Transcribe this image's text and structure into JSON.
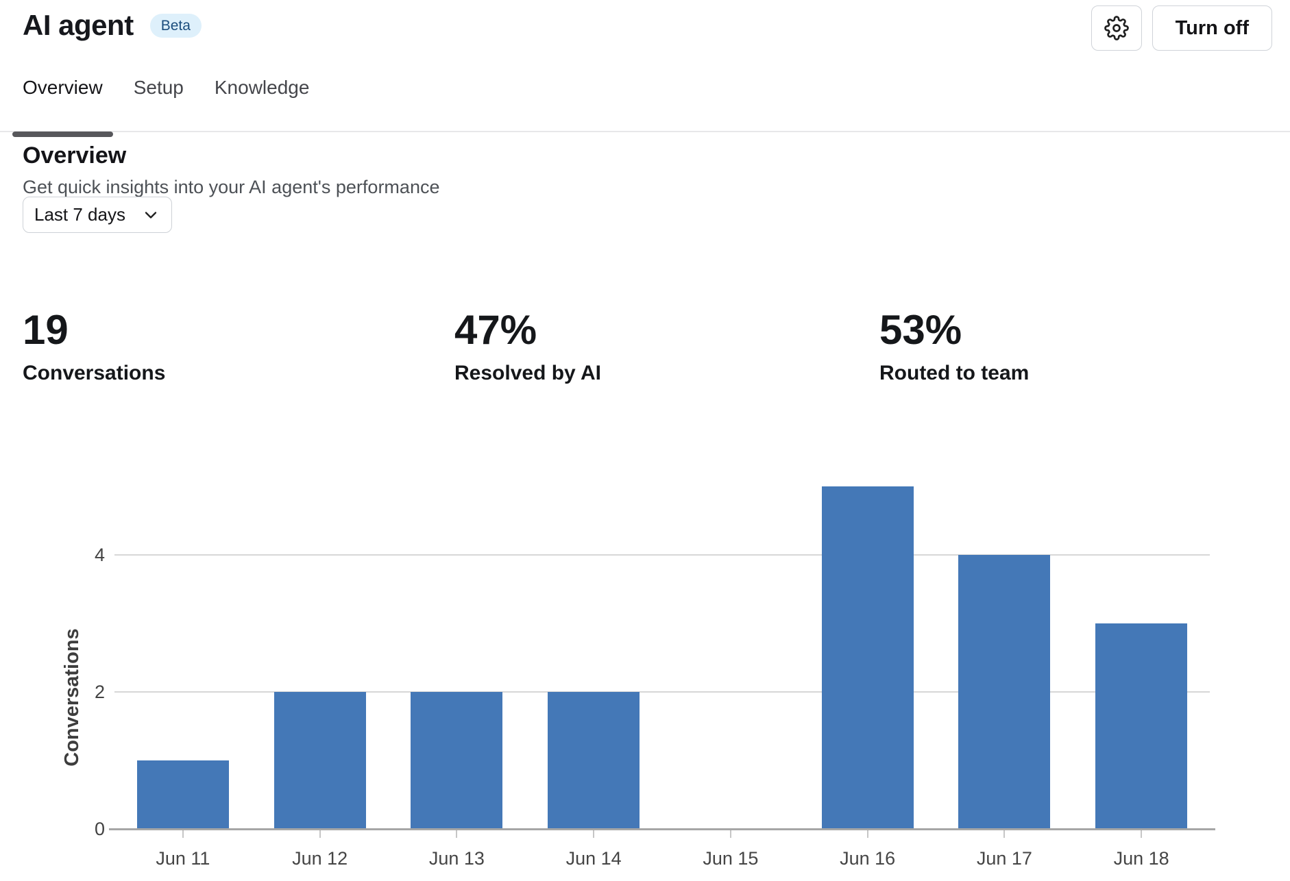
{
  "header": {
    "title": "AI agent",
    "badge": "Beta",
    "turn_off_label": "Turn off"
  },
  "tabs": [
    {
      "label": "Overview",
      "active": true
    },
    {
      "label": "Setup",
      "active": false
    },
    {
      "label": "Knowledge",
      "active": false
    }
  ],
  "section": {
    "heading": "Overview",
    "subheading": "Get quick insights into your AI agent's performance"
  },
  "filters": {
    "date_range_value": "Last 7 days"
  },
  "stats": [
    {
      "value": "19",
      "label": "Conversations"
    },
    {
      "value": "47%",
      "label": "Resolved by AI"
    },
    {
      "value": "53%",
      "label": "Routed to team"
    }
  ],
  "chart_data": {
    "type": "bar",
    "title": "",
    "categories": [
      "Jun 11",
      "Jun 12",
      "Jun 13",
      "Jun 14",
      "Jun 15",
      "Jun 16",
      "Jun 17",
      "Jun 18"
    ],
    "values": [
      1,
      2,
      2,
      2,
      0,
      5,
      4,
      3
    ],
    "xlabel": "",
    "ylabel": "Conversations",
    "yticks": [
      0,
      2,
      4
    ],
    "ylim": [
      0,
      5
    ],
    "grid": true,
    "legend": false,
    "bar_color": "#4478b7"
  },
  "icons": {
    "settings": "gear-icon",
    "dropdown": "chevron-down-icon"
  },
  "colors": {
    "bar_blue": "#4478b7",
    "badge_bg": "#def0fb",
    "badge_text": "#1b4d7d",
    "active_tab_underline": "#57575b"
  }
}
